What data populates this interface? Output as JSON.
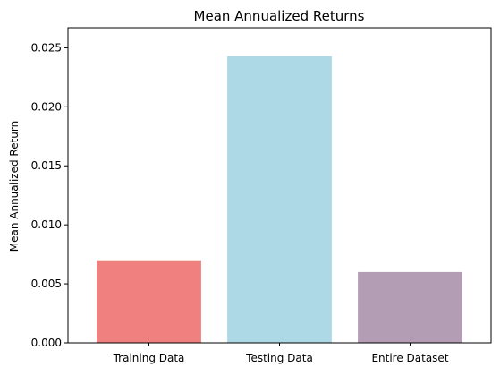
{
  "chart_data": {
    "type": "bar",
    "title": "Mean Annualized Returns",
    "xlabel": "",
    "ylabel": "Mean Annualized Return",
    "categories": [
      "Training Data",
      "Testing Data",
      "Entire Dataset"
    ],
    "values": [
      0.007,
      0.0243,
      0.006
    ],
    "colors": [
      "#f08080",
      "#add8e6",
      "#b29db4"
    ],
    "ylim": [
      0,
      0.0267
    ],
    "yticks": [
      0.0,
      0.005,
      0.01,
      0.015,
      0.02,
      0.025
    ],
    "ytick_labels": [
      "0.000",
      "0.005",
      "0.010",
      "0.015",
      "0.020",
      "0.025"
    ],
    "grid": false,
    "legend": false
  }
}
